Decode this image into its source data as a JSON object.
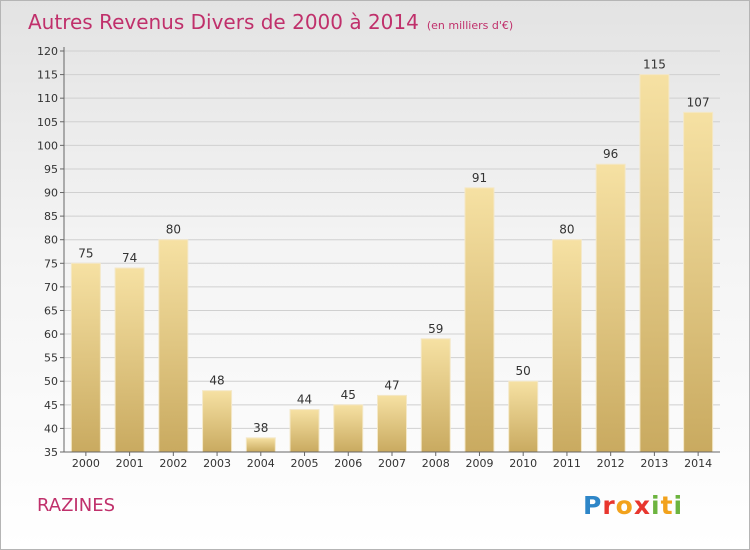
{
  "title": "Autres Revenus Divers de 2000 à 2014",
  "subtitle": "(en milliers d'€)",
  "location": "RAZINES",
  "logo_text": "Proxiti",
  "colors": {
    "title": "#c0306b",
    "bar_light": "#f6e1a3",
    "bar_dark": "#c9aa60",
    "axis": "#666666"
  },
  "chart_data": {
    "type": "bar",
    "title": "Autres Revenus Divers de 2000 à 2014",
    "subtitle": "(en milliers d'€)",
    "categories": [
      "2000",
      "2001",
      "2002",
      "2003",
      "2004",
      "2005",
      "2006",
      "2007",
      "2008",
      "2009",
      "2010",
      "2011",
      "2012",
      "2013",
      "2014"
    ],
    "values": [
      75,
      74,
      80,
      48,
      38,
      44,
      45,
      47,
      59,
      91,
      50,
      80,
      96,
      115,
      107
    ],
    "ylim": [
      35,
      120
    ],
    "yticks": [
      35,
      40,
      45,
      50,
      55,
      60,
      65,
      70,
      75,
      80,
      85,
      90,
      95,
      100,
      105,
      110,
      115,
      120
    ],
    "grid": true,
    "xlabel": "",
    "ylabel": ""
  }
}
